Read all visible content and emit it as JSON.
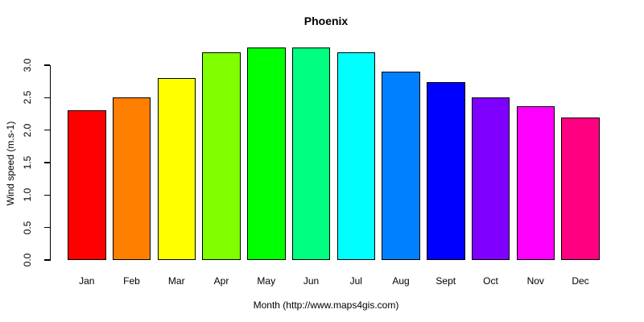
{
  "chart_data": {
    "type": "bar",
    "title": "Phoenix",
    "xlabel": "Month (http://www.maps4gis.com)",
    "ylabel": "Wind speed (m.s-1)",
    "categories": [
      "Jan",
      "Feb",
      "Mar",
      "Apr",
      "May",
      "Jun",
      "Jul",
      "Aug",
      "Sept",
      "Oct",
      "Nov",
      "Dec"
    ],
    "values": [
      2.3,
      2.51,
      2.8,
      3.2,
      3.27,
      3.27,
      3.2,
      2.9,
      2.74,
      2.51,
      2.37,
      2.2
    ],
    "colors": [
      "#FF0000",
      "#FF8000",
      "#FFFF00",
      "#80FF00",
      "#00FF00",
      "#00FF80",
      "#00FFFF",
      "#0080FF",
      "#0000FF",
      "#8000FF",
      "#FF00FF",
      "#FF0080"
    ],
    "yticks": [
      "0.0",
      "0.5",
      "1.0",
      "1.5",
      "2.0",
      "2.5",
      "3.0"
    ],
    "ylim": [
      0,
      3.3
    ],
    "grid": false,
    "legend": "none",
    "bar_border_color": "#000000",
    "axis_color": "#000000",
    "background_color": "#FFFFFF",
    "text_color": "#000000"
  }
}
